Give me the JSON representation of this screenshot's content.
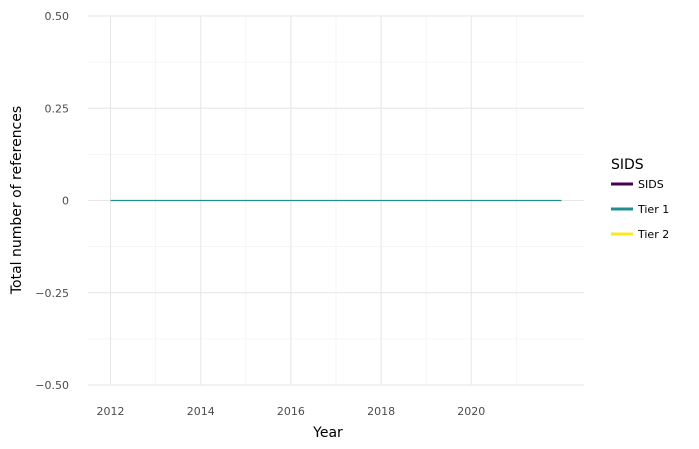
{
  "chart_data": {
    "type": "line",
    "title": "",
    "xlabel": "Year",
    "ylabel": "Total number of references",
    "x": [
      2012,
      2013,
      2014,
      2015,
      2016,
      2017,
      2018,
      2019,
      2020,
      2021,
      2022
    ],
    "xlim": [
      2011.5,
      2022.5
    ],
    "xticks": [
      2012,
      2014,
      2016,
      2018,
      2020
    ],
    "xtick_labels": [
      "2012",
      "2014",
      "2016",
      "2018",
      "2020"
    ],
    "ylim": [
      -0.5,
      0.5
    ],
    "yticks": [
      -0.5,
      -0.25,
      0,
      0.25,
      0.5
    ],
    "ytick_labels": [
      "−0.50",
      "−0.25",
      "0",
      "0.25",
      "0.50"
    ],
    "grid": true,
    "legend": {
      "title": "SIDS",
      "placement": "right",
      "entries": [
        {
          "label": "SIDS",
          "color": "#440154"
        },
        {
          "label": "Tier 1",
          "color": "#21908C"
        },
        {
          "label": "Tier 2",
          "color": "#FDE725"
        }
      ]
    },
    "series": [
      {
        "name": "Tier 1",
        "color": "#21908C",
        "values": [
          0,
          0,
          0,
          0,
          0,
          0,
          0,
          0,
          0,
          0,
          0
        ]
      }
    ]
  }
}
